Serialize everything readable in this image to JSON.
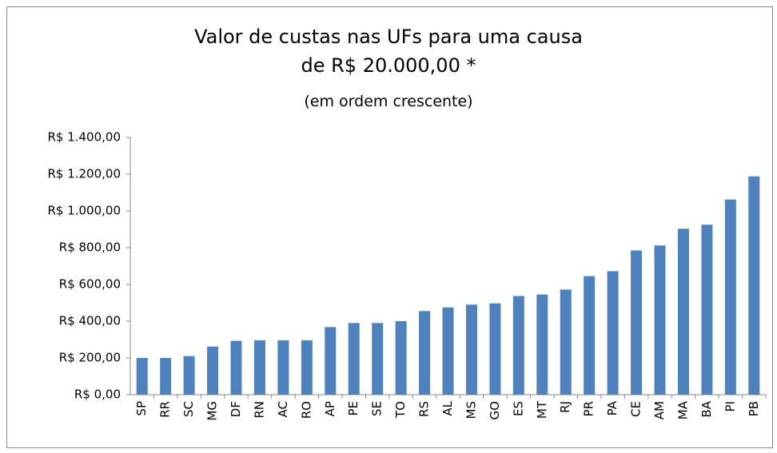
{
  "chart_data": {
    "type": "bar",
    "title": "Valor de custas nas UFs para uma causa de R$ 20.000,00 *",
    "subtitle": "(em ordem crescente)",
    "categories": [
      "SP",
      "RR",
      "SC",
      "MG",
      "DF",
      "RN",
      "AC",
      "RO",
      "AP",
      "PE",
      "SE",
      "TO",
      "RS",
      "AL",
      "MS",
      "GO",
      "ES",
      "MT",
      "RJ",
      "PR",
      "PA",
      "CE",
      "AM",
      "MA",
      "BA",
      "PI",
      "PB"
    ],
    "values": [
      200,
      200,
      210,
      262,
      293,
      296,
      296,
      296,
      368,
      390,
      390,
      400,
      455,
      475,
      490,
      497,
      537,
      545,
      572,
      645,
      672,
      785,
      812,
      903,
      925,
      1062,
      1188
    ],
    "color": "#4f81bd",
    "ylim": [
      0,
      1400
    ],
    "yticks": [
      {
        "value": 0,
        "label": "R$ 0,00"
      },
      {
        "value": 200,
        "label": "R$ 200,00"
      },
      {
        "value": 400,
        "label": "R$ 400,00"
      },
      {
        "value": 600,
        "label": "R$ 600,00"
      },
      {
        "value": 800,
        "label": "R$ 800,00"
      },
      {
        "value": 1000,
        "label": "R$ 1.000,00"
      },
      {
        "value": 1200,
        "label": "R$ 1.200,00"
      },
      {
        "value": 1400,
        "label": "R$ 1.400,00"
      }
    ],
    "grid": false
  }
}
